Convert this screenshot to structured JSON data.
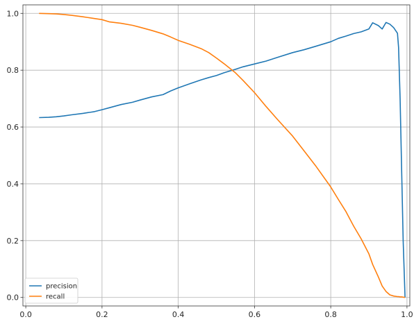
{
  "chart_data": {
    "type": "line",
    "title": "",
    "xlabel": "",
    "ylabel": "",
    "xlim": [
      -0.0075,
      1.0075
    ],
    "ylim": [
      -0.03,
      1.03
    ],
    "grid": true,
    "legend_position": "lower-left",
    "xticks": [
      0.0,
      0.2,
      0.4,
      0.6,
      0.8,
      1.0
    ],
    "xtick_labels": [
      "0.0",
      "0.2",
      "0.4",
      "0.6",
      "0.8",
      "1.0"
    ],
    "yticks": [
      0.0,
      0.2,
      0.4,
      0.6,
      0.8,
      1.0
    ],
    "ytick_labels": [
      "0.0",
      "0.2",
      "0.4",
      "0.6",
      "0.8",
      "1.0"
    ],
    "series": [
      {
        "name": "precision",
        "color": "#1f77b4",
        "x": [
          0.035,
          0.06,
          0.08,
          0.1,
          0.12,
          0.15,
          0.18,
          0.2,
          0.22,
          0.25,
          0.28,
          0.3,
          0.33,
          0.36,
          0.38,
          0.4,
          0.43,
          0.46,
          0.48,
          0.5,
          0.52,
          0.55,
          0.57,
          0.6,
          0.63,
          0.66,
          0.7,
          0.73,
          0.76,
          0.8,
          0.82,
          0.84,
          0.86,
          0.88,
          0.9,
          0.91,
          0.925,
          0.935,
          0.945,
          0.955,
          0.965,
          0.975,
          0.978,
          0.982,
          0.986,
          0.99,
          0.995
        ],
        "y": [
          0.633,
          0.634,
          0.636,
          0.639,
          0.643,
          0.648,
          0.654,
          0.661,
          0.668,
          0.679,
          0.687,
          0.695,
          0.706,
          0.714,
          0.727,
          0.738,
          0.752,
          0.766,
          0.774,
          0.781,
          0.791,
          0.803,
          0.812,
          0.822,
          0.832,
          0.845,
          0.862,
          0.872,
          0.884,
          0.9,
          0.912,
          0.92,
          0.929,
          0.935,
          0.945,
          0.967,
          0.957,
          0.945,
          0.968,
          0.962,
          0.95,
          0.93,
          0.88,
          0.7,
          0.45,
          0.2,
          0.0
        ]
      },
      {
        "name": "recall",
        "color": "#ff7f0e",
        "x": [
          0.035,
          0.06,
          0.08,
          0.1,
          0.12,
          0.15,
          0.18,
          0.2,
          0.22,
          0.25,
          0.28,
          0.3,
          0.33,
          0.36,
          0.38,
          0.4,
          0.43,
          0.46,
          0.48,
          0.5,
          0.52,
          0.55,
          0.57,
          0.6,
          0.63,
          0.66,
          0.7,
          0.73,
          0.76,
          0.8,
          0.82,
          0.84,
          0.86,
          0.88,
          0.9,
          0.91,
          0.925,
          0.935,
          0.945,
          0.955,
          0.965,
          0.975,
          0.978,
          0.982,
          0.986,
          0.99,
          0.995
        ],
        "y": [
          1.0,
          0.999,
          0.998,
          0.996,
          0.993,
          0.988,
          0.982,
          0.978,
          0.97,
          0.965,
          0.958,
          0.951,
          0.94,
          0.928,
          0.917,
          0.905,
          0.891,
          0.876,
          0.862,
          0.843,
          0.823,
          0.791,
          0.764,
          0.721,
          0.673,
          0.627,
          0.568,
          0.516,
          0.464,
          0.389,
          0.345,
          0.302,
          0.251,
          0.206,
          0.154,
          0.116,
          0.072,
          0.04,
          0.021,
          0.009,
          0.005,
          0.003,
          0.003,
          0.002,
          0.002,
          0.001,
          0.0
        ]
      }
    ]
  }
}
